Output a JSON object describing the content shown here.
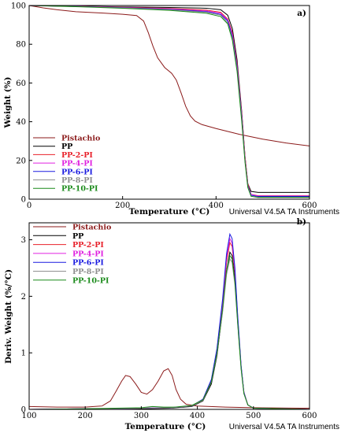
{
  "chart_data": [
    {
      "type": "line",
      "panel_label": "a)",
      "xlabel": "Temperature (°C)",
      "ylabel": "Weight (%)",
      "xlim": [
        0,
        600
      ],
      "ylim": [
        0,
        100
      ],
      "xticks": [
        0,
        200,
        400,
        600
      ],
      "yticks": [
        0,
        20,
        40,
        60,
        80,
        100
      ],
      "grid": false,
      "legend_position": "lower-left",
      "footer_text": "Universal V4.5A TA Instruments",
      "series": [
        {
          "name": "Pistachio",
          "color": "#8b1a1a",
          "points": [
            [
              0,
              100
            ],
            [
              30,
              98.8
            ],
            [
              60,
              97.8
            ],
            [
              100,
              96.8
            ],
            [
              150,
              96.2
            ],
            [
              200,
              95.5
            ],
            [
              230,
              94.8
            ],
            [
              245,
              92
            ],
            [
              255,
              86
            ],
            [
              265,
              79
            ],
            [
              275,
              73
            ],
            [
              290,
              68
            ],
            [
              305,
              65
            ],
            [
              315,
              61.5
            ],
            [
              325,
              55
            ],
            [
              335,
              48
            ],
            [
              345,
              43
            ],
            [
              355,
              40.3
            ],
            [
              370,
              38.5
            ],
            [
              400,
              36.5
            ],
            [
              450,
              33.5
            ],
            [
              500,
              31
            ],
            [
              550,
              29
            ],
            [
              600,
              27.5
            ]
          ]
        },
        {
          "name": "PP",
          "color": "#000000",
          "points": [
            [
              0,
              100
            ],
            [
              100,
              99.7
            ],
            [
              200,
              99.3
            ],
            [
              300,
              99
            ],
            [
              380,
              98.6
            ],
            [
              410,
              97.8
            ],
            [
              425,
              95
            ],
            [
              435,
              88
            ],
            [
              445,
              72
            ],
            [
              455,
              45
            ],
            [
              462,
              22
            ],
            [
              468,
              8
            ],
            [
              475,
              4
            ],
            [
              490,
              3.5
            ],
            [
              600,
              3.5
            ]
          ]
        },
        {
          "name": "PP-2-PI",
          "color": "#e8202a",
          "points": [
            [
              0,
              100
            ],
            [
              100,
              99.6
            ],
            [
              200,
              99.1
            ],
            [
              300,
              98.5
            ],
            [
              380,
              97.6
            ],
            [
              410,
              96.5
            ],
            [
              425,
              93
            ],
            [
              435,
              86
            ],
            [
              445,
              70
            ],
            [
              455,
              44
            ],
            [
              462,
              22
            ],
            [
              468,
              8
            ],
            [
              475,
              2.5
            ],
            [
              490,
              1.8
            ],
            [
              600,
              1.8
            ]
          ]
        },
        {
          "name": "PP-4-PI",
          "color": "#e020e0",
          "points": [
            [
              0,
              100
            ],
            [
              100,
              99.6
            ],
            [
              200,
              99
            ],
            [
              300,
              98.2
            ],
            [
              380,
              97.2
            ],
            [
              410,
              96
            ],
            [
              425,
              92.5
            ],
            [
              435,
              85
            ],
            [
              445,
              69
            ],
            [
              455,
              43
            ],
            [
              462,
              21
            ],
            [
              468,
              7
            ],
            [
              475,
              2.5
            ],
            [
              490,
              1.6
            ],
            [
              600,
              1.6
            ]
          ]
        },
        {
          "name": "PP-6-PI",
          "color": "#1a1ae0",
          "points": [
            [
              0,
              100
            ],
            [
              100,
              99.5
            ],
            [
              200,
              98.9
            ],
            [
              300,
              98
            ],
            [
              380,
              96.8
            ],
            [
              410,
              95.4
            ],
            [
              425,
              92
            ],
            [
              435,
              84
            ],
            [
              445,
              68
            ],
            [
              455,
              42
            ],
            [
              462,
              20
            ],
            [
              468,
              7
            ],
            [
              475,
              2
            ],
            [
              490,
              1.4
            ],
            [
              600,
              1.4
            ]
          ]
        },
        {
          "name": "PP-8-PI",
          "color": "#909090",
          "points": [
            [
              0,
              100
            ],
            [
              100,
              99.5
            ],
            [
              200,
              98.8
            ],
            [
              300,
              97.8
            ],
            [
              380,
              96.5
            ],
            [
              410,
              95
            ],
            [
              425,
              91
            ],
            [
              435,
              83
            ],
            [
              445,
              67
            ],
            [
              455,
              41
            ],
            [
              462,
              20
            ],
            [
              468,
              6.5
            ],
            [
              475,
              1.5
            ],
            [
              490,
              0.8
            ],
            [
              600,
              0.8
            ]
          ]
        },
        {
          "name": "PP-10-PI",
          "color": "#1a8a1a",
          "points": [
            [
              0,
              100
            ],
            [
              100,
              99.4
            ],
            [
              200,
              98.6
            ],
            [
              300,
              97.5
            ],
            [
              380,
              96
            ],
            [
              410,
              94.3
            ],
            [
              425,
              90.5
            ],
            [
              435,
              82
            ],
            [
              445,
              66
            ],
            [
              455,
              40
            ],
            [
              462,
              19
            ],
            [
              468,
              6
            ],
            [
              475,
              1.5
            ],
            [
              490,
              1
            ],
            [
              600,
              1
            ]
          ]
        }
      ]
    },
    {
      "type": "line",
      "panel_label": "b)",
      "xlabel": "Temperature (°C)",
      "ylabel": "Deriv. Weight (%/°C)",
      "xlim": [
        100,
        600
      ],
      "ylim": [
        0,
        3.3
      ],
      "xticks": [
        100,
        200,
        300,
        400,
        500,
        600
      ],
      "yticks": [
        0,
        1,
        2,
        3
      ],
      "grid": false,
      "legend_position": "top-left",
      "footer_text": "Universal V4.5A TA Instruments",
      "series": [
        {
          "name": "Pistachio",
          "color": "#8b1a1a",
          "points": [
            [
              100,
              0.05
            ],
            [
              150,
              0.04
            ],
            [
              200,
              0.04
            ],
            [
              230,
              0.06
            ],
            [
              245,
              0.15
            ],
            [
              255,
              0.32
            ],
            [
              265,
              0.5
            ],
            [
              272,
              0.6
            ],
            [
              280,
              0.58
            ],
            [
              290,
              0.45
            ],
            [
              300,
              0.3
            ],
            [
              310,
              0.27
            ],
            [
              320,
              0.35
            ],
            [
              330,
              0.5
            ],
            [
              340,
              0.68
            ],
            [
              348,
              0.72
            ],
            [
              355,
              0.6
            ],
            [
              362,
              0.35
            ],
            [
              370,
              0.18
            ],
            [
              380,
              0.09
            ],
            [
              400,
              0.06
            ],
            [
              450,
              0.04
            ],
            [
              500,
              0.03
            ],
            [
              600,
              0.02
            ]
          ]
        },
        {
          "name": "PP",
          "color": "#000000",
          "points": [
            [
              100,
              0
            ],
            [
              200,
              0
            ],
            [
              300,
              0.01
            ],
            [
              350,
              0.02
            ],
            [
              390,
              0.05
            ],
            [
              410,
              0.15
            ],
            [
              425,
              0.45
            ],
            [
              435,
              0.95
            ],
            [
              445,
              1.75
            ],
            [
              452,
              2.45
            ],
            [
              458,
              2.78
            ],
            [
              462,
              2.72
            ],
            [
              467,
              2.3
            ],
            [
              472,
              1.55
            ],
            [
              478,
              0.75
            ],
            [
              483,
              0.3
            ],
            [
              490,
              0.08
            ],
            [
              500,
              0.02
            ],
            [
              600,
              0
            ]
          ]
        },
        {
          "name": "PP-2-PI",
          "color": "#e8202a",
          "points": [
            [
              100,
              0
            ],
            [
              200,
              0.01
            ],
            [
              300,
              0.02
            ],
            [
              350,
              0.03
            ],
            [
              390,
              0.06
            ],
            [
              410,
              0.17
            ],
            [
              425,
              0.5
            ],
            [
              435,
              1.02
            ],
            [
              445,
              1.85
            ],
            [
              452,
              2.6
            ],
            [
              458,
              2.95
            ],
            [
              462,
              2.88
            ],
            [
              467,
              2.4
            ],
            [
              472,
              1.6
            ],
            [
              478,
              0.75
            ],
            [
              483,
              0.3
            ],
            [
              490,
              0.08
            ],
            [
              500,
              0.02
            ],
            [
              600,
              0
            ]
          ]
        },
        {
          "name": "PP-4-PI",
          "color": "#e020e0",
          "points": [
            [
              100,
              0
            ],
            [
              200,
              0.01
            ],
            [
              300,
              0.02
            ],
            [
              350,
              0.03
            ],
            [
              390,
              0.06
            ],
            [
              410,
              0.18
            ],
            [
              425,
              0.52
            ],
            [
              435,
              1.05
            ],
            [
              445,
              1.9
            ],
            [
              452,
              2.68
            ],
            [
              458,
              3.02
            ],
            [
              462,
              2.94
            ],
            [
              467,
              2.45
            ],
            [
              472,
              1.62
            ],
            [
              478,
              0.75
            ],
            [
              483,
              0.3
            ],
            [
              490,
              0.08
            ],
            [
              500,
              0.02
            ],
            [
              600,
              0
            ]
          ]
        },
        {
          "name": "PP-6-PI",
          "color": "#1a1ae0",
          "points": [
            [
              100,
              0
            ],
            [
              200,
              0.01
            ],
            [
              300,
              0.02
            ],
            [
              350,
              0.03
            ],
            [
              390,
              0.06
            ],
            [
              410,
              0.18
            ],
            [
              425,
              0.53
            ],
            [
              435,
              1.08
            ],
            [
              445,
              1.95
            ],
            [
              452,
              2.75
            ],
            [
              458,
              3.1
            ],
            [
              462,
              3.02
            ],
            [
              467,
              2.5
            ],
            [
              472,
              1.65
            ],
            [
              478,
              0.78
            ],
            [
              483,
              0.3
            ],
            [
              490,
              0.08
            ],
            [
              500,
              0.02
            ],
            [
              600,
              0
            ]
          ]
        },
        {
          "name": "PP-8-PI",
          "color": "#909090",
          "points": [
            [
              100,
              0
            ],
            [
              200,
              0.01
            ],
            [
              300,
              0.02
            ],
            [
              350,
              0.03
            ],
            [
              390,
              0.06
            ],
            [
              410,
              0.16
            ],
            [
              425,
              0.48
            ],
            [
              435,
              0.98
            ],
            [
              445,
              1.72
            ],
            [
              452,
              2.38
            ],
            [
              458,
              2.66
            ],
            [
              462,
              2.6
            ],
            [
              467,
              2.2
            ],
            [
              472,
              1.5
            ],
            [
              478,
              0.72
            ],
            [
              483,
              0.28
            ],
            [
              490,
              0.08
            ],
            [
              500,
              0.02
            ],
            [
              600,
              0
            ]
          ]
        },
        {
          "name": "PP-10-PI",
          "color": "#1a8a1a",
          "points": [
            [
              100,
              0
            ],
            [
              200,
              0.01
            ],
            [
              300,
              0.03
            ],
            [
              320,
              0.05
            ],
            [
              340,
              0.04
            ],
            [
              360,
              0.04
            ],
            [
              390,
              0.07
            ],
            [
              410,
              0.17
            ],
            [
              425,
              0.49
            ],
            [
              435,
              1.0
            ],
            [
              445,
              1.78
            ],
            [
              452,
              2.45
            ],
            [
              458,
              2.72
            ],
            [
              462,
              2.66
            ],
            [
              467,
              2.25
            ],
            [
              472,
              1.52
            ],
            [
              478,
              0.72
            ],
            [
              483,
              0.28
            ],
            [
              490,
              0.08
            ],
            [
              500,
              0.02
            ],
            [
              600,
              0
            ]
          ]
        }
      ]
    }
  ]
}
